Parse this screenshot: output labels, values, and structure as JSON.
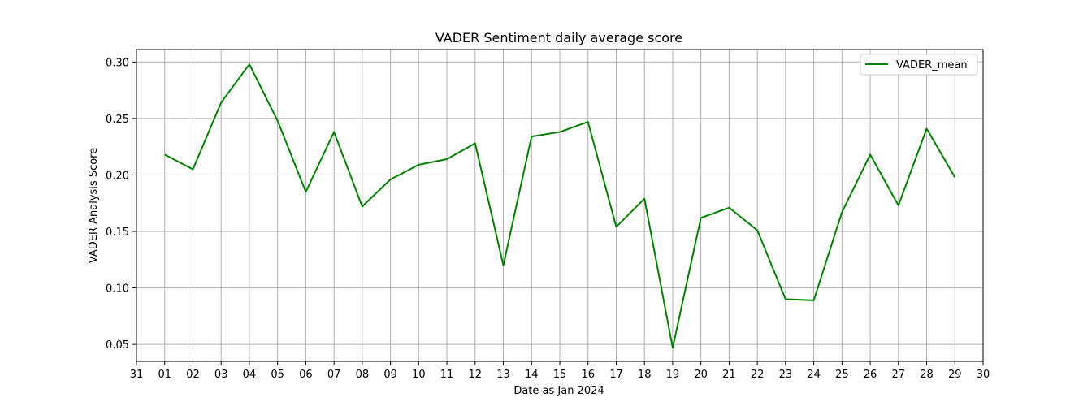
{
  "chart_data": {
    "type": "line",
    "title": "VADER Sentiment daily average score",
    "xlabel": "Date as Jan 2024",
    "ylabel": "VADER Analysis Score",
    "x_tick_labels": [
      "31",
      "01",
      "02",
      "03",
      "04",
      "05",
      "06",
      "07",
      "08",
      "09",
      "10",
      "11",
      "12",
      "13",
      "14",
      "15",
      "16",
      "17",
      "18",
      "19",
      "20",
      "21",
      "22",
      "23",
      "24",
      "25",
      "26",
      "27",
      "28",
      "29",
      "30"
    ],
    "x": [
      "2024-01-01",
      "2024-01-02",
      "2024-01-03",
      "2024-01-04",
      "2024-01-05",
      "2024-01-06",
      "2024-01-07",
      "2024-01-08",
      "2024-01-09",
      "2024-01-10",
      "2024-01-11",
      "2024-01-12",
      "2024-01-13",
      "2024-01-14",
      "2024-01-15",
      "2024-01-16",
      "2024-01-17",
      "2024-01-18",
      "2024-01-19",
      "2024-01-20",
      "2024-01-21",
      "2024-01-22",
      "2024-01-23",
      "2024-01-24",
      "2024-01-25",
      "2024-01-26",
      "2024-01-27",
      "2024-01-28",
      "2024-01-29"
    ],
    "xlim": [
      "2023-12-31",
      "2024-01-30"
    ],
    "y_ticks": [
      0.05,
      0.1,
      0.15,
      0.2,
      0.25,
      0.3
    ],
    "y_tick_labels": [
      "0.05",
      "0.10",
      "0.15",
      "0.20",
      "0.25",
      "0.30"
    ],
    "ylim": [
      0.035,
      0.311
    ],
    "grid": true,
    "legend_position": "top-right",
    "series": [
      {
        "name": "VADER_mean",
        "color": "#008000",
        "values": [
          0.218,
          0.205,
          0.264,
          0.298,
          0.248,
          0.185,
          0.238,
          0.172,
          0.196,
          0.209,
          0.214,
          0.228,
          0.12,
          0.234,
          0.238,
          0.247,
          0.154,
          0.179,
          0.047,
          0.162,
          0.171,
          0.151,
          0.09,
          0.089,
          0.167,
          0.218,
          0.173,
          0.241,
          0.198
        ]
      }
    ]
  }
}
